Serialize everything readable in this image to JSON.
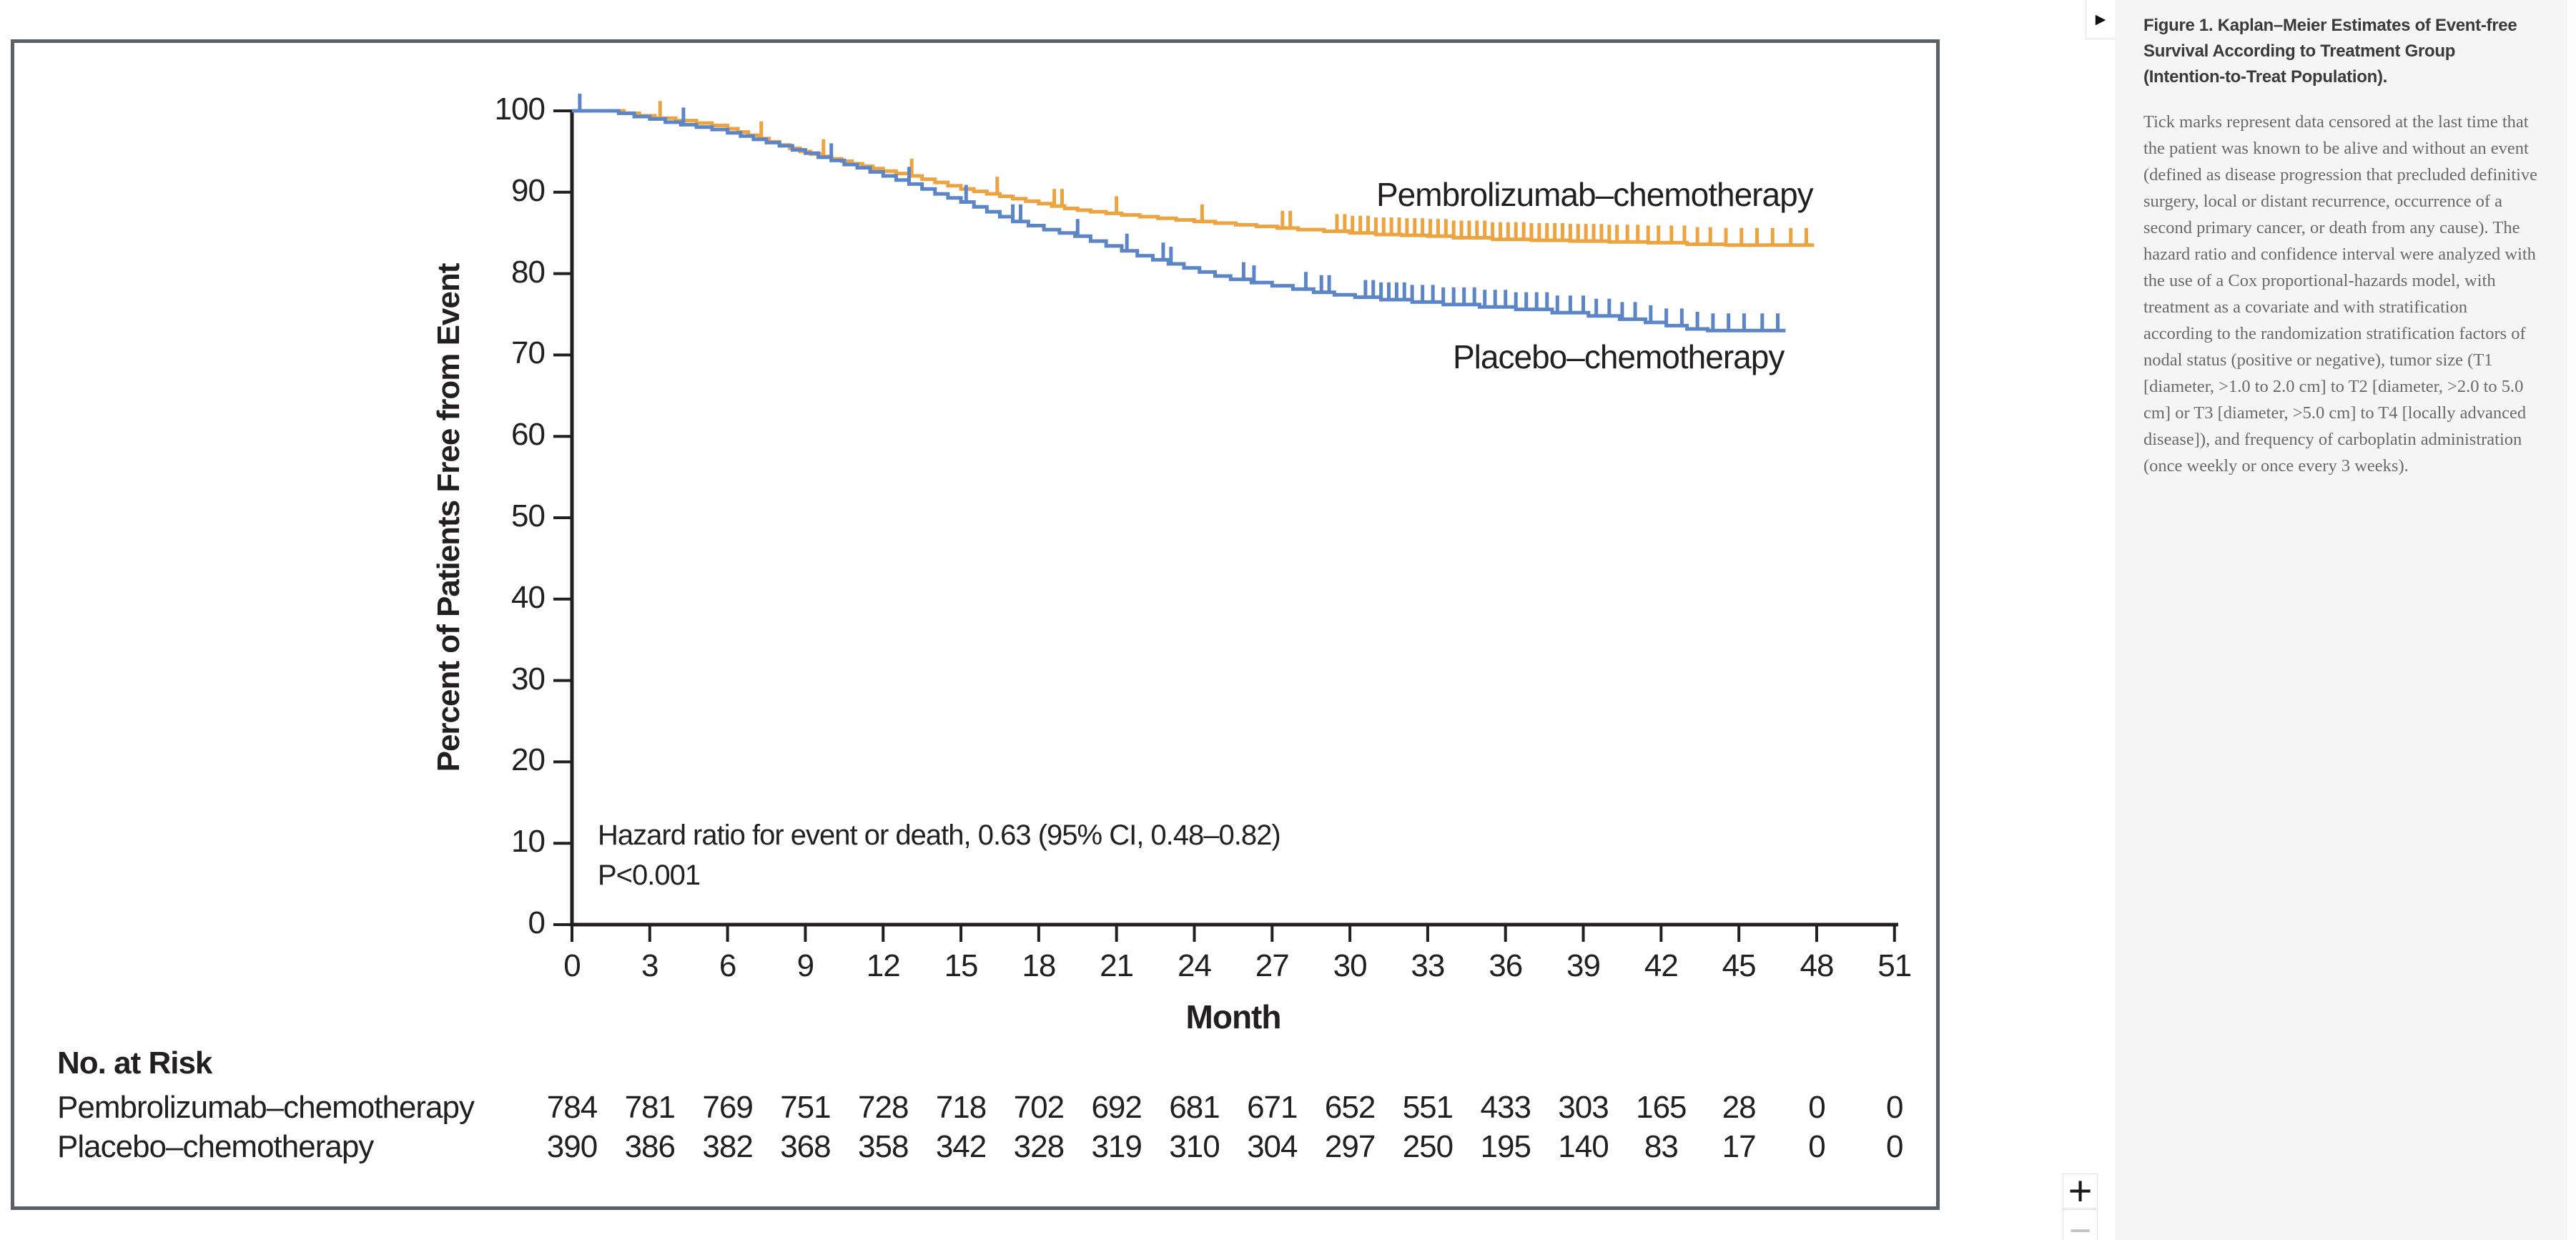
{
  "viewer": {
    "expand_icon": "▶",
    "zoom_in_label": "+",
    "zoom_out_label": "−"
  },
  "caption_panel": {
    "title": "Figure 1. Kaplan–Meier Estimates of Event-free Survival According to Treatment Group (Intention-to-Treat Population).",
    "body": "Tick marks represent data censored at the last time that the patient was known to be alive and without an event (defined as disease progression that precluded definitive surgery, local or distant recurrence, occurrence of a second primary cancer, or death from any cause). The hazard ratio and confidence interval were analyzed with the use of a Cox proportional-hazards model, with treatment as a covariate and with stratification according to the randomization stratification factors of nodal status (positive or negative), tumor size (T1 [diameter, >1.0 to 2.0 cm] to T2 [diameter, >2.0 to 5.0 cm] or T3 [diameter, >5.0 cm] to T4 [locally advanced disease]), and frequency of carboplatin administration (once weekly or once every 3 weeks)."
  },
  "chart_data": {
    "type": "line",
    "subtype": "kaplan-meier-step",
    "ylabel": "Percent of Patients Free from Event",
    "xlabel": "Month",
    "ylim": [
      0,
      100
    ],
    "xlim": [
      0,
      51
    ],
    "grid": false,
    "legend_position": "inline-labels",
    "y_ticks": [
      0,
      10,
      20,
      30,
      40,
      50,
      60,
      70,
      80,
      90,
      100
    ],
    "x_ticks": [
      0,
      3,
      6,
      9,
      12,
      15,
      18,
      21,
      24,
      27,
      30,
      33,
      36,
      39,
      42,
      45,
      48,
      51
    ],
    "annotation": {
      "line1": "Hazard ratio for event or death, 0.63 (95% CI, 0.48–0.82)",
      "line2": "P<0.001"
    },
    "axis_color": "#231f20",
    "series": [
      {
        "name": "Pembrolizumab–chemotherapy",
        "color": "#eda33f",
        "end_month": 47.9,
        "steps": [
          [
            0,
            100
          ],
          [
            2,
            99.7
          ],
          [
            2.6,
            99.4
          ],
          [
            3.2,
            99.1
          ],
          [
            4,
            98.8
          ],
          [
            4.8,
            98.5
          ],
          [
            5.4,
            98.2
          ],
          [
            6,
            97.8
          ],
          [
            6.4,
            97.4
          ],
          [
            6.8,
            97.0
          ],
          [
            7.2,
            96.6
          ],
          [
            7.6,
            96.2
          ],
          [
            8,
            95.8
          ],
          [
            8.4,
            95.4
          ],
          [
            8.8,
            95.0
          ],
          [
            9.2,
            94.7
          ],
          [
            9.6,
            94.4
          ],
          [
            10,
            94.1
          ],
          [
            10.4,
            93.8
          ],
          [
            10.8,
            93.5
          ],
          [
            11.2,
            93.2
          ],
          [
            11.6,
            92.9
          ],
          [
            12,
            92.6
          ],
          [
            12.5,
            92.3
          ],
          [
            13,
            92.0
          ],
          [
            13.5,
            91.6
          ],
          [
            14,
            91.2
          ],
          [
            14.5,
            90.8
          ],
          [
            15,
            90.4
          ],
          [
            15.5,
            90.1
          ],
          [
            16,
            89.8
          ],
          [
            16.5,
            89.5
          ],
          [
            17,
            89.2
          ],
          [
            17.5,
            88.9
          ],
          [
            18,
            88.6
          ],
          [
            18.5,
            88.3
          ],
          [
            19,
            88.0
          ],
          [
            19.5,
            87.8
          ],
          [
            20,
            87.6
          ],
          [
            20.6,
            87.4
          ],
          [
            21.2,
            87.2
          ],
          [
            21.9,
            87.0
          ],
          [
            22.6,
            86.8
          ],
          [
            23.3,
            86.6
          ],
          [
            24,
            86.4
          ],
          [
            24.8,
            86.2
          ],
          [
            25.6,
            86.0
          ],
          [
            26.4,
            85.8
          ],
          [
            27.2,
            85.6
          ],
          [
            28,
            85.4
          ],
          [
            29,
            85.2
          ],
          [
            30,
            85.0
          ],
          [
            31,
            84.8
          ],
          [
            32,
            84.7
          ],
          [
            33,
            84.6
          ],
          [
            34,
            84.4
          ],
          [
            35.5,
            84.2
          ],
          [
            37,
            84.1
          ],
          [
            38.5,
            84.0
          ],
          [
            40,
            83.9
          ],
          [
            41.5,
            83.8
          ],
          [
            43,
            83.6
          ],
          [
            44.5,
            83.5
          ]
        ],
        "censor_ticks": [
          3.4,
          7.3,
          9.7,
          13.1,
          16.4,
          18.6,
          18.9,
          21,
          24.3,
          27.4,
          27.7,
          29.5,
          29.8,
          30.1,
          30.4,
          30.7,
          31,
          31.3,
          31.6,
          31.9,
          32.2,
          32.5,
          32.8,
          33.1,
          33.4,
          33.7,
          34,
          34.3,
          34.6,
          34.9,
          35.2,
          35.5,
          35.8,
          36.1,
          36.4,
          36.7,
          37,
          37.3,
          37.6,
          37.9,
          38.2,
          38.5,
          38.8,
          39.1,
          39.4,
          39.7,
          40,
          40.3,
          40.7,
          41.1,
          41.5,
          41.9,
          42.4,
          42.9,
          43.4,
          43.9,
          44.5,
          45.1,
          45.7,
          46.3,
          47,
          47.6
        ]
      },
      {
        "name": "Placebo–chemotherapy",
        "color": "#5b85c7",
        "end_month": 46.8,
        "steps": [
          [
            0,
            100
          ],
          [
            1.8,
            99.7
          ],
          [
            2.4,
            99.3
          ],
          [
            3,
            99.0
          ],
          [
            3.6,
            98.6
          ],
          [
            4.2,
            98.3
          ],
          [
            4.8,
            98.0
          ],
          [
            5.4,
            97.7
          ],
          [
            6,
            97.3
          ],
          [
            6.5,
            96.9
          ],
          [
            7,
            96.5
          ],
          [
            7.5,
            96.1
          ],
          [
            8,
            95.7
          ],
          [
            8.5,
            95.2
          ],
          [
            9,
            94.8
          ],
          [
            9.5,
            94.3
          ],
          [
            10,
            93.9
          ],
          [
            10.5,
            93.4
          ],
          [
            11,
            93.0
          ],
          [
            11.5,
            92.5
          ],
          [
            12,
            92.0
          ],
          [
            12.5,
            91.5
          ],
          [
            13,
            91.0
          ],
          [
            13.5,
            90.4
          ],
          [
            14,
            89.8
          ],
          [
            14.5,
            89.3
          ],
          [
            15,
            88.8
          ],
          [
            15.5,
            88.2
          ],
          [
            16,
            87.6
          ],
          [
            16.5,
            87.0
          ],
          [
            17,
            86.4
          ],
          [
            17.6,
            85.9
          ],
          [
            18.2,
            85.4
          ],
          [
            18.8,
            85.0
          ],
          [
            19.4,
            84.6
          ],
          [
            20,
            84.0
          ],
          [
            20.6,
            83.4
          ],
          [
            21.2,
            82.8
          ],
          [
            21.8,
            82.2
          ],
          [
            22.4,
            81.7
          ],
          [
            23,
            81.2
          ],
          [
            23.6,
            80.7
          ],
          [
            24.2,
            80.2
          ],
          [
            24.8,
            79.7
          ],
          [
            25.4,
            79.3
          ],
          [
            26.2,
            78.9
          ],
          [
            27,
            78.5
          ],
          [
            27.8,
            78.1
          ],
          [
            28.6,
            77.7
          ],
          [
            29.4,
            77.4
          ],
          [
            30.2,
            77.1
          ],
          [
            31.2,
            76.8
          ],
          [
            32.4,
            76.5
          ],
          [
            33.6,
            76.2
          ],
          [
            35,
            75.9
          ],
          [
            36.4,
            75.6
          ],
          [
            37.8,
            75.2
          ],
          [
            39.2,
            74.8
          ],
          [
            40.4,
            74.4
          ],
          [
            41.4,
            74.0
          ],
          [
            42.2,
            73.6
          ],
          [
            43,
            73.2
          ],
          [
            43.8,
            73.0
          ]
        ],
        "censor_ticks": [
          0.3,
          4.3,
          10,
          13,
          15.2,
          17,
          17.3,
          19.5,
          21.4,
          22.8,
          23.1,
          25.9,
          26.3,
          28.3,
          28.9,
          29.2,
          30.6,
          30.9,
          31.2,
          31.5,
          31.8,
          32.1,
          32.4,
          32.8,
          33.2,
          33.6,
          34,
          34.4,
          34.8,
          35.2,
          35.6,
          36,
          36.4,
          36.8,
          37.2,
          37.6,
          38,
          38.5,
          39,
          39.5,
          40,
          40.5,
          41,
          41.6,
          42.2,
          42.8,
          43.4,
          44,
          44.6,
          45.2,
          45.9,
          46.5
        ]
      }
    ],
    "risk_table": {
      "title": "No. at Risk",
      "months": [
        0,
        3,
        6,
        9,
        12,
        15,
        18,
        21,
        24,
        27,
        30,
        33,
        36,
        39,
        42,
        45,
        48,
        51
      ],
      "rows": [
        {
          "label": "Pembrolizumab–chemotherapy",
          "values": [
            784,
            781,
            769,
            751,
            728,
            718,
            702,
            692,
            681,
            671,
            652,
            551,
            433,
            303,
            165,
            28,
            0,
            0
          ]
        },
        {
          "label": "Placebo–chemotherapy",
          "values": [
            390,
            386,
            382,
            368,
            358,
            342,
            328,
            319,
            310,
            304,
            297,
            250,
            195,
            140,
            83,
            17,
            0,
            0
          ]
        }
      ]
    }
  }
}
